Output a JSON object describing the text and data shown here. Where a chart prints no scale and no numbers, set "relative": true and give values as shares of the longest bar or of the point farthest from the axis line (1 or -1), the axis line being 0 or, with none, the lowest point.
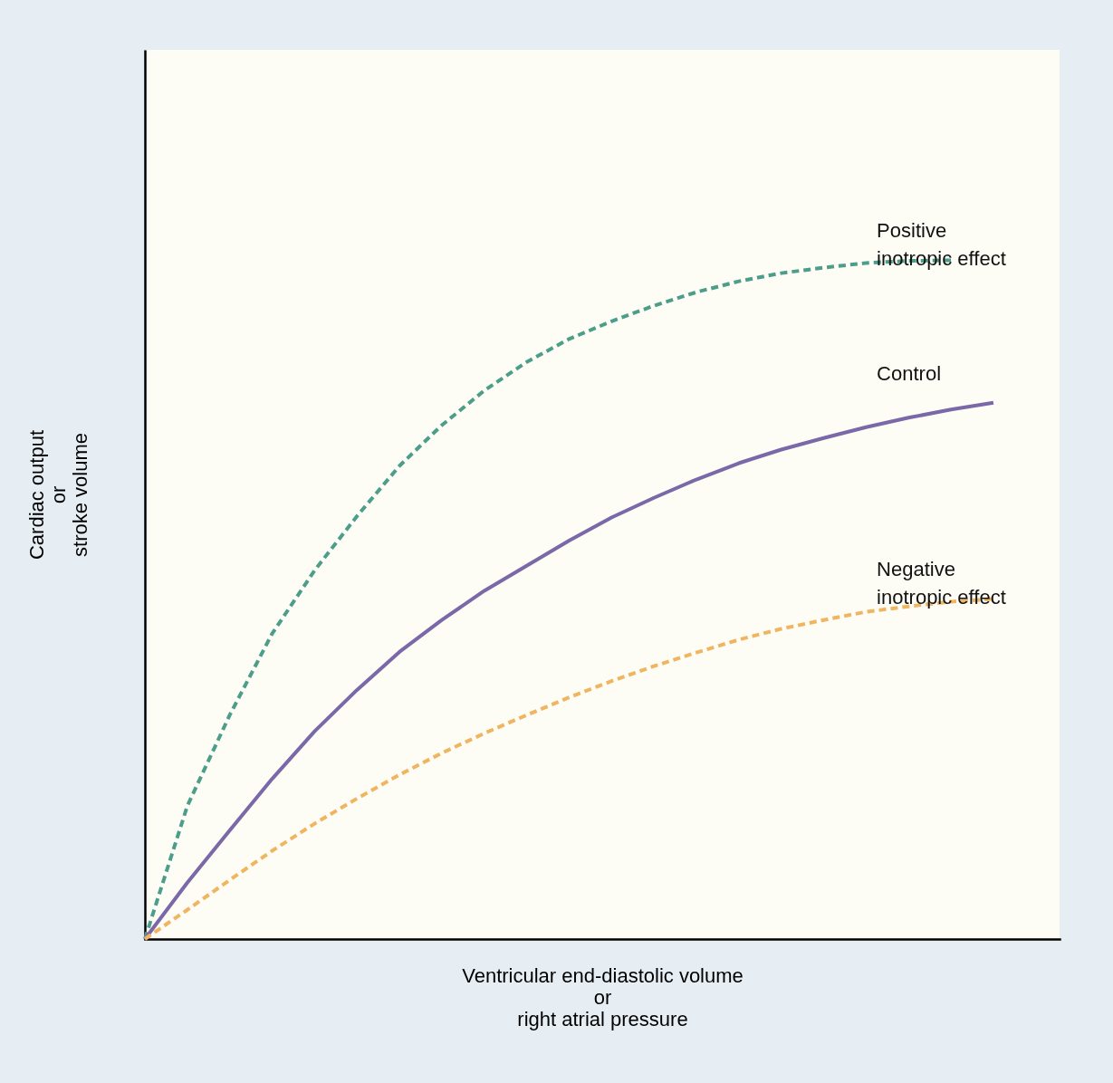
{
  "chart_data": {
    "type": "line",
    "relative": true,
    "xlabel": "Ventricular end-diastolic volume\nor\nright atrial pressure",
    "ylabel": "Cardiac output\nor\nstroke volume",
    "categories": [
      null,
      null,
      null,
      null,
      null,
      null,
      null,
      null,
      null,
      null,
      null,
      null,
      null,
      null,
      null,
      null,
      null,
      null,
      null,
      null,
      null
    ],
    "series": [
      {
        "name": "Positive\ninotropic effect",
        "color": "#4c9e8a",
        "line_style": "dashed",
        "values": [
          0,
          0.196,
          0.33,
          0.45,
          0.543,
          0.623,
          0.697,
          0.757,
          0.808,
          0.85,
          0.884,
          0.91,
          0.933,
          0.953,
          0.969,
          0.981,
          0.989,
          0.996,
          0.999,
          1,
          null
        ]
      },
      {
        "name": "Control",
        "color": "#7b68a8",
        "line_style": "solid",
        "values": [
          0,
          0.083,
          0.16,
          0.236,
          0.306,
          0.367,
          0.423,
          0.47,
          0.513,
          0.55,
          0.587,
          0.621,
          0.65,
          0.677,
          0.701,
          0.721,
          0.738,
          0.754,
          0.768,
          0.78,
          0.79
        ]
      },
      {
        "name": "Negative\ninotropic effect",
        "color": "#f0b560",
        "line_style": "dashed",
        "values": [
          0,
          0.043,
          0.087,
          0.13,
          0.17,
          0.207,
          0.242,
          0.274,
          0.303,
          0.33,
          0.356,
          0.38,
          0.402,
          0.422,
          0.441,
          0.457,
          0.47,
          0.482,
          0.49,
          0.497,
          0.501
        ]
      }
    ]
  }
}
